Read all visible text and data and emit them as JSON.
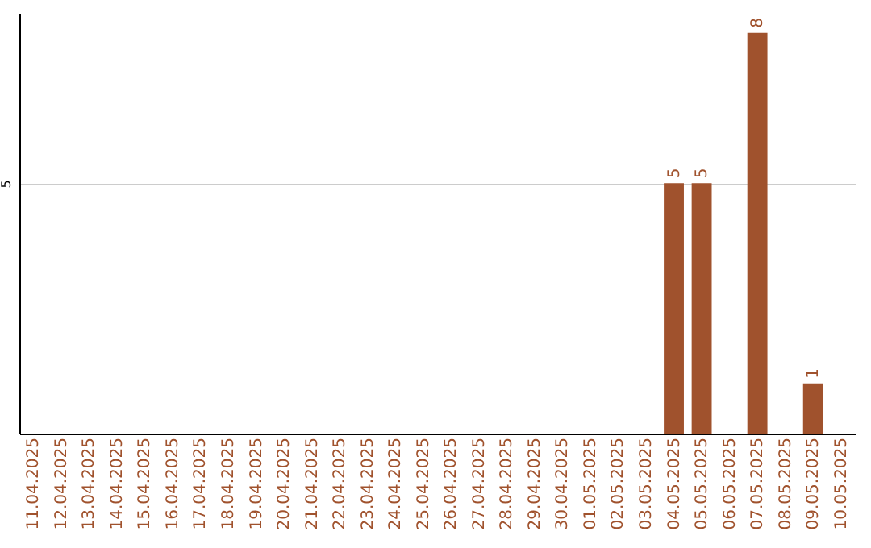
{
  "chart_data": {
    "type": "bar",
    "categories": [
      "11.04.2025",
      "12.04.2025",
      "13.04.2025",
      "14.04.2025",
      "15.04.2025",
      "16.04.2025",
      "17.04.2025",
      "18.04.2025",
      "19.04.2025",
      "20.04.2025",
      "21.04.2025",
      "22.04.2025",
      "23.04.2025",
      "24.04.2025",
      "25.04.2025",
      "26.04.2025",
      "27.04.2025",
      "28.04.2025",
      "29.04.2025",
      "30.04.2025",
      "01.05.2025",
      "02.05.2025",
      "03.05.2025",
      "04.05.2025",
      "05.05.2025",
      "06.05.2025",
      "07.05.2025",
      "08.05.2025",
      "09.05.2025",
      "10.05.2025"
    ],
    "values": [
      null,
      null,
      null,
      null,
      null,
      null,
      null,
      null,
      null,
      null,
      null,
      null,
      null,
      null,
      null,
      null,
      null,
      null,
      null,
      null,
      null,
      null,
      null,
      5,
      5,
      null,
      8,
      null,
      1,
      null
    ],
    "color": "#a0522d",
    "ylim": [
      0,
      8.4
    ],
    "yticks": [
      5
    ],
    "grid": "y",
    "data_labels": true
  }
}
